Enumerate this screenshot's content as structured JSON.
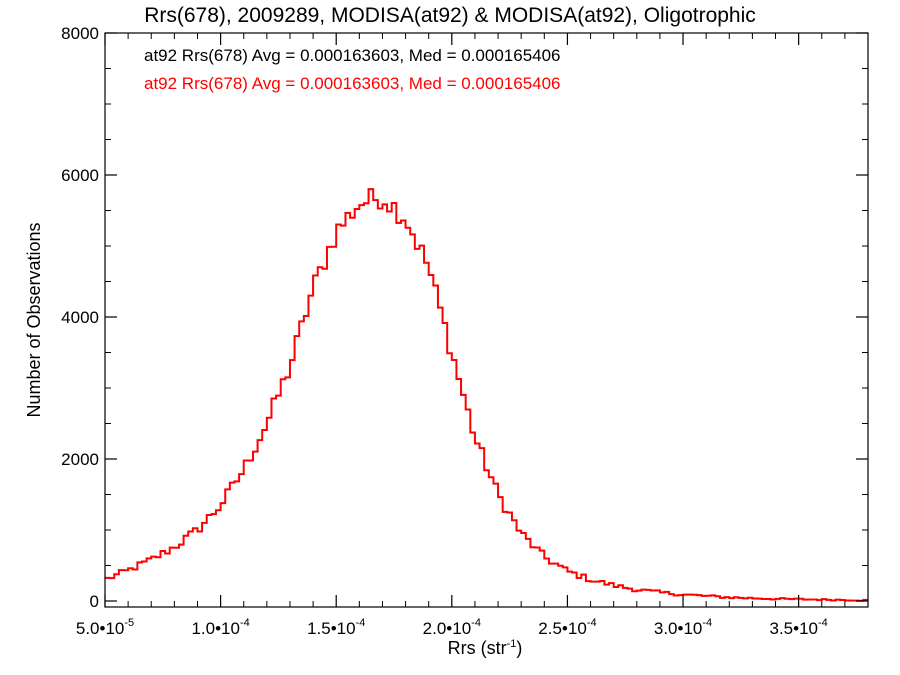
{
  "chart_data": {
    "type": "histogram",
    "title": "Rrs(678), 2009289, MODISA(at92) & MODISA(at92), Oligotrophic",
    "xlabel": "Rrs (str",
    "xlabel_exp": "-1",
    "xlabel_close": ")",
    "ylabel": "Number of Observations",
    "xlim": [
      5e-05,
      0.00038
    ],
    "ylim": [
      0,
      8000
    ],
    "x_ticks": [
      {
        "value": 5e-05,
        "mant": "5.0•10",
        "exp": "-5"
      },
      {
        "value": 0.0001,
        "mant": "1.0•10",
        "exp": "-4"
      },
      {
        "value": 0.00015,
        "mant": "1.5•10",
        "exp": "-4"
      },
      {
        "value": 0.0002,
        "mant": "2.0•10",
        "exp": "-4"
      },
      {
        "value": 0.00025,
        "mant": "2.5•10",
        "exp": "-4"
      },
      {
        "value": 0.0003,
        "mant": "3.0•10",
        "exp": "-4"
      },
      {
        "value": 0.00035,
        "mant": "3.5•10",
        "exp": "-4"
      }
    ],
    "y_ticks": [
      0,
      2000,
      4000,
      6000,
      8000
    ],
    "y_tick_labels": [
      "0",
      "2000",
      "4000",
      "6000",
      "8000"
    ],
    "annotations": [
      {
        "text": "at92 Rrs(678) Avg = 0.000163603, Med = 0.000165406",
        "color": "#000000"
      },
      {
        "text": "at92 Rrs(678) Avg = 0.000163603, Med = 0.000165406",
        "color": "#ff0000"
      }
    ],
    "series": [
      {
        "color": "#ff0000",
        "overlay_color": "#000000",
        "bin_width": 2e-06,
        "anchors": [
          [
            5e-05,
            300
          ],
          [
            6e-05,
            430
          ],
          [
            7e-05,
            580
          ],
          [
            8e-05,
            760
          ],
          [
            9e-05,
            1000
          ],
          [
            0.0001,
            1350
          ],
          [
            0.00011,
            1850
          ],
          [
            0.00012,
            2500
          ],
          [
            0.00013,
            3300
          ],
          [
            0.00014,
            4400
          ],
          [
            0.00015,
            5200
          ],
          [
            0.00016,
            5600
          ],
          [
            0.00017,
            5700
          ],
          [
            0.00018,
            5400
          ],
          [
            0.00019,
            4700
          ],
          [
            0.0002,
            3500
          ],
          [
            0.00021,
            2300
          ],
          [
            0.00022,
            1500
          ],
          [
            0.00023,
            950
          ],
          [
            0.00024,
            620
          ],
          [
            0.00025,
            420
          ],
          [
            0.00026,
            300
          ],
          [
            0.00027,
            220
          ],
          [
            0.00028,
            160
          ],
          [
            0.00029,
            120
          ],
          [
            0.0003,
            90
          ],
          [
            0.00031,
            70
          ],
          [
            0.00032,
            50
          ],
          [
            0.00033,
            40
          ],
          [
            0.00034,
            30
          ],
          [
            0.00035,
            25
          ],
          [
            0.00036,
            20
          ],
          [
            0.00037,
            15
          ],
          [
            0.00038,
            10
          ]
        ]
      }
    ]
  }
}
